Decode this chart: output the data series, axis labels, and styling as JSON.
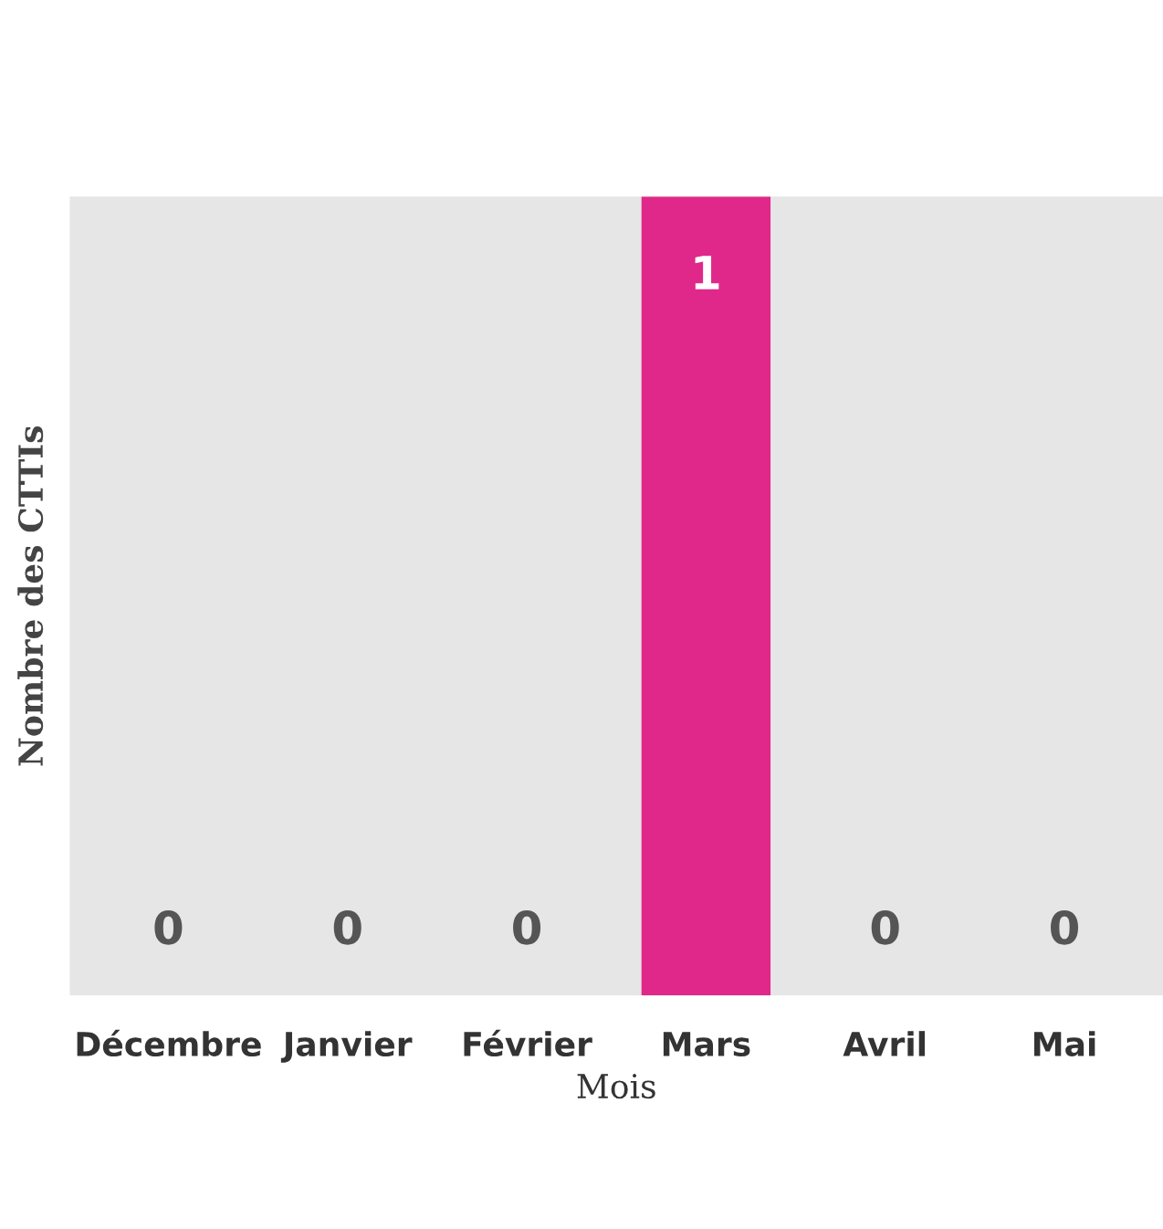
{
  "chart_data": {
    "type": "bar",
    "xlabel": "Mois",
    "ylabel": "Nombre des CTTIs",
    "categories": [
      "Décembre",
      "Janvier",
      "Février",
      "Mars",
      "Avril",
      "Mai"
    ],
    "values": [
      0,
      0,
      0,
      1,
      0,
      0
    ],
    "color": "#e0288a",
    "data_labels": true,
    "grid": false,
    "legend": false
  }
}
